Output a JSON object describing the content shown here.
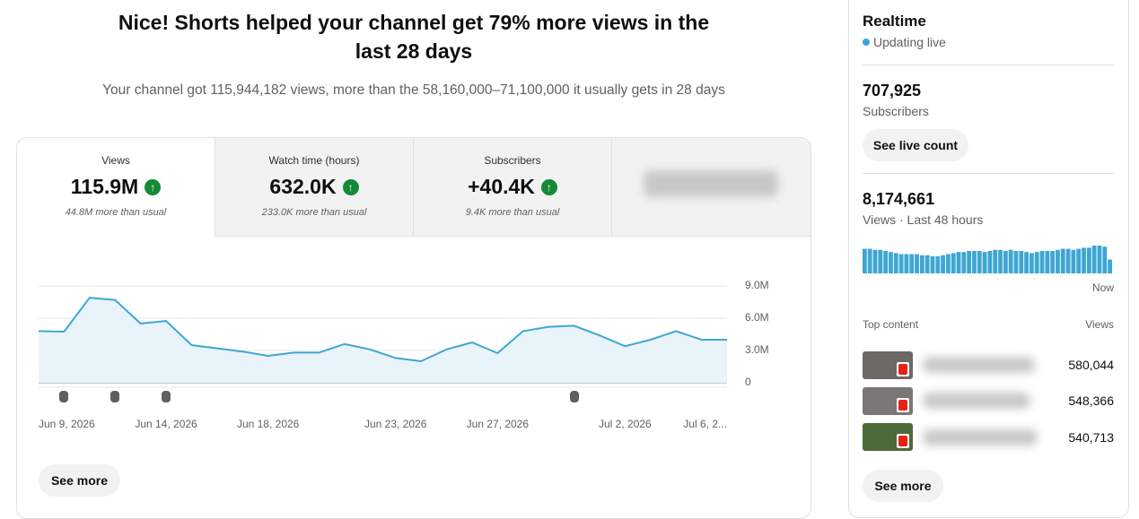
{
  "header": {
    "title_line1": "Nice! Shorts helped your channel get 79% more views in the",
    "title_line2": "last 28 days",
    "subtitle": "Your channel got 115,944,182 views, more than the 58,160,000–71,100,000 it usually gets in 28 days"
  },
  "tabs": [
    {
      "label": "Views",
      "value": "115.9M",
      "note": "44.8M more than usual"
    },
    {
      "label": "Watch time (hours)",
      "value": "632.0K",
      "note": "233.0K more than usual"
    },
    {
      "label": "Subscribers",
      "value": "+40.4K",
      "note": "9.4K more than usual"
    }
  ],
  "see_more": "See more",
  "chart_data": [
    {
      "type": "line",
      "color": "#3ea6d3",
      "grid": true,
      "categories": [
        "Jun 9, 2026",
        null,
        null,
        null,
        null,
        "Jun 14, 2026",
        null,
        null,
        null,
        "Jun 18, 2026",
        null,
        null,
        null,
        null,
        "Jun 23, 2026",
        null,
        null,
        null,
        "Jun 27, 2026",
        null,
        null,
        null,
        null,
        "Jul 2, 2026",
        null,
        null,
        null,
        "Jul 6, 2..."
      ],
      "values": [
        4800000,
        4750000,
        7900000,
        7700000,
        5500000,
        5750000,
        3500000,
        3200000,
        2900000,
        2500000,
        2800000,
        2800000,
        3600000,
        3100000,
        2300000,
        2000000,
        3100000,
        3750000,
        2750000,
        4800000,
        5200000,
        5300000,
        4400000,
        3400000,
        4000000,
        4800000,
        4000000,
        4000000
      ],
      "ylim": [
        0,
        9000000
      ],
      "yticks": [
        {
          "value": 0,
          "label": "0"
        },
        {
          "value": 3000000,
          "label": "3.0M"
        },
        {
          "value": 6000000,
          "label": "6.0M"
        },
        {
          "value": 9000000,
          "label": "9.0M"
        }
      ]
    },
    {
      "type": "bar",
      "color": "#3ea6d3",
      "end_label": "Now",
      "values": [
        161000,
        161000,
        154000,
        154000,
        147000,
        140000,
        133000,
        126000,
        126000,
        126000,
        126000,
        119000,
        119000,
        112000,
        112000,
        119000,
        126000,
        133000,
        140000,
        140000,
        147000,
        147000,
        147000,
        140000,
        147000,
        154000,
        154000,
        147000,
        154000,
        147000,
        147000,
        140000,
        133000,
        140000,
        147000,
        147000,
        147000,
        154000,
        161000,
        161000,
        154000,
        161000,
        168000,
        168000,
        182000,
        182000,
        175000,
        91000
      ]
    }
  ],
  "realtime": {
    "title": "Realtime",
    "status": "Updating live",
    "subscribers": "707,925",
    "subscribers_label": "Subscribers",
    "live_button": "See live count",
    "views": "8,174,661",
    "views_label": "Views · Last 48 hours",
    "top_content": "Top content",
    "views_header": "Views",
    "items": [
      "580,044",
      "548,366",
      "540,713"
    ],
    "see_more": "See more"
  }
}
